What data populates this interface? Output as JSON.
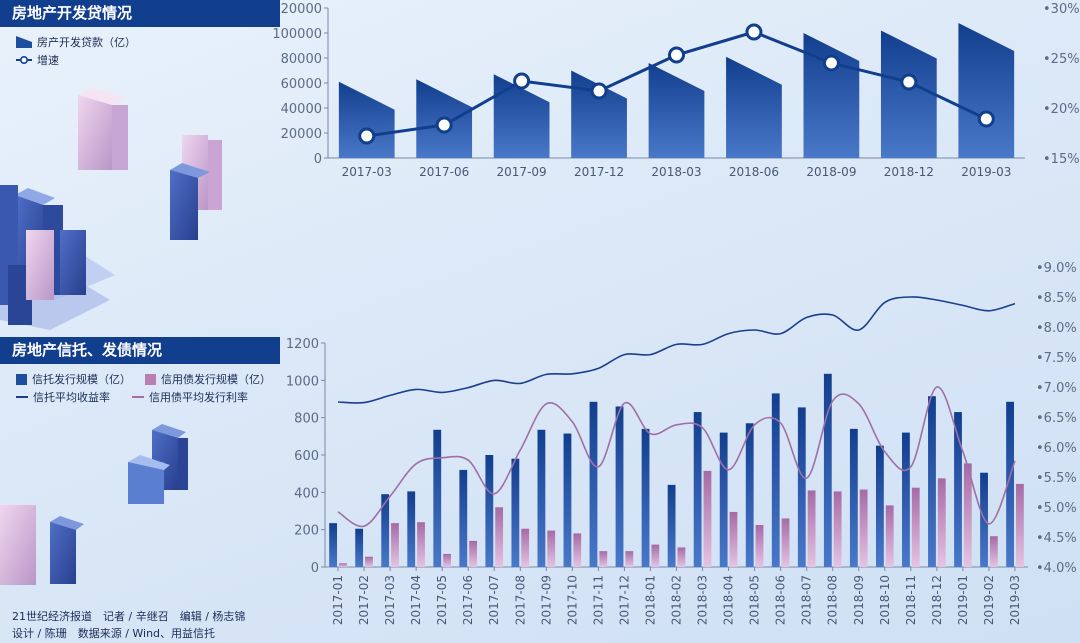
{
  "chart_data": [
    {
      "type": "bar",
      "title": "房地产开发贷情况",
      "categories": [
        "2017-03",
        "2017-06",
        "2017-09",
        "2017-12",
        "2018-03",
        "2018-06",
        "2018-09",
        "2018-12",
        "2019-03"
      ],
      "series": [
        {
          "name": "房产开发贷款（亿）",
          "type": "bar",
          "values": [
            61000,
            63000,
            67000,
            70000,
            76000,
            81000,
            100000,
            102000,
            108000
          ]
        },
        {
          "name": "增速",
          "type": "line",
          "axis": "right",
          "unit": "%",
          "values": [
            17.2,
            18.3,
            22.7,
            21.7,
            25.3,
            27.6,
            24.5,
            22.6,
            18.9
          ]
        }
      ],
      "ylim": [
        0,
        120000
      ],
      "yticks": [
        "0",
        "20000",
        "40000",
        "60000",
        "80000",
        "100000",
        "120000"
      ],
      "y2lim": [
        15,
        30
      ],
      "y2ticks": [
        "15%",
        "20%",
        "25%",
        "30%"
      ],
      "colors": {
        "bar": "#1d4f9f",
        "line": "#123e8e"
      }
    },
    {
      "type": "bar",
      "title": "房地产信托、发债情况",
      "categories": [
        "2017-01",
        "2017-02",
        "2017-03",
        "2017-04",
        "2017-05",
        "2017-06",
        "2017-07",
        "2017-08",
        "2017-09",
        "2017-10",
        "2017-11",
        "2017-12",
        "2018-01",
        "2018-02",
        "2018-03",
        "2018-04",
        "2018-05",
        "2018-06",
        "2018-07",
        "2018-08",
        "2018-09",
        "2018-10",
        "2018-11",
        "2018-12",
        "2019-01",
        "2019-02",
        "2019-03"
      ],
      "series": [
        {
          "name": "信托发行规模（亿）",
          "type": "bar",
          "values": [
            235,
            205,
            390,
            405,
            735,
            520,
            600,
            580,
            735,
            715,
            885,
            860,
            740,
            440,
            830,
            720,
            770,
            930,
            855,
            1035,
            740,
            650,
            720,
            915,
            830,
            505,
            885
          ]
        },
        {
          "name": "信用债发行规模（亿）",
          "type": "bar",
          "values": [
            20,
            55,
            235,
            240,
            70,
            140,
            320,
            205,
            195,
            180,
            85,
            85,
            120,
            105,
            515,
            295,
            225,
            260,
            410,
            405,
            415,
            330,
            425,
            475,
            555,
            165,
            445
          ]
        },
        {
          "name": "信托平均收益率",
          "type": "line",
          "axis": "right",
          "unit": "%",
          "values": [
            6.75,
            6.74,
            6.86,
            6.96,
            6.91,
            6.99,
            7.11,
            7.06,
            7.21,
            7.22,
            7.31,
            7.54,
            7.54,
            7.71,
            7.71,
            7.89,
            7.95,
            7.89,
            8.16,
            8.2,
            7.95,
            8.41,
            8.5,
            8.45,
            8.36,
            8.27,
            8.39
          ]
        },
        {
          "name": "信用债平均发行利率",
          "type": "line",
          "axis": "right",
          "unit": "%",
          "values": [
            4.92,
            4.68,
            5.18,
            5.72,
            5.82,
            5.78,
            5.22,
            5.95,
            6.72,
            6.42,
            5.67,
            6.73,
            6.22,
            6.37,
            6.32,
            5.62,
            6.37,
            6.4,
            5.48,
            6.77,
            6.72,
            5.92,
            5.67,
            7.0,
            5.92,
            4.72,
            5.77
          ]
        }
      ],
      "ylim": [
        0,
        1200
      ],
      "yticks": [
        "0",
        "200",
        "400",
        "600",
        "800",
        "1000",
        "1200"
      ],
      "y2lim": [
        4.0,
        9.0
      ],
      "y2ticks": [
        "4.0%",
        "4.5%",
        "5.0%",
        "5.5%",
        "6.0%",
        "6.5%",
        "7.0%",
        "7.5%",
        "8.0%",
        "8.5%",
        "9.0%"
      ],
      "colors": {
        "trust_bar": "#1d4f9f",
        "bond_bar": "#b87fb3",
        "trust_line": "#1a3f8f",
        "bond_line": "#a06fa6"
      }
    }
  ],
  "panel1": {
    "title": "房地产开发贷情况",
    "legend_loan": "房产开发贷款（亿）",
    "legend_growth": "增速"
  },
  "panel2": {
    "title": "房地产信托、发债情况",
    "legend_trust": "信托发行规模（亿）",
    "legend_bond": "信用债发行规模（亿）",
    "legend_trust_yield": "信托平均收益率",
    "legend_bond_rate": "信用债平均发行利率"
  },
  "credits": {
    "line1": "21世纪经济报道　记者 / 辛继召　编辑 / 杨志锦",
    "line2": "设计 / 陈珊　数据来源 / Wind、用益信托"
  }
}
